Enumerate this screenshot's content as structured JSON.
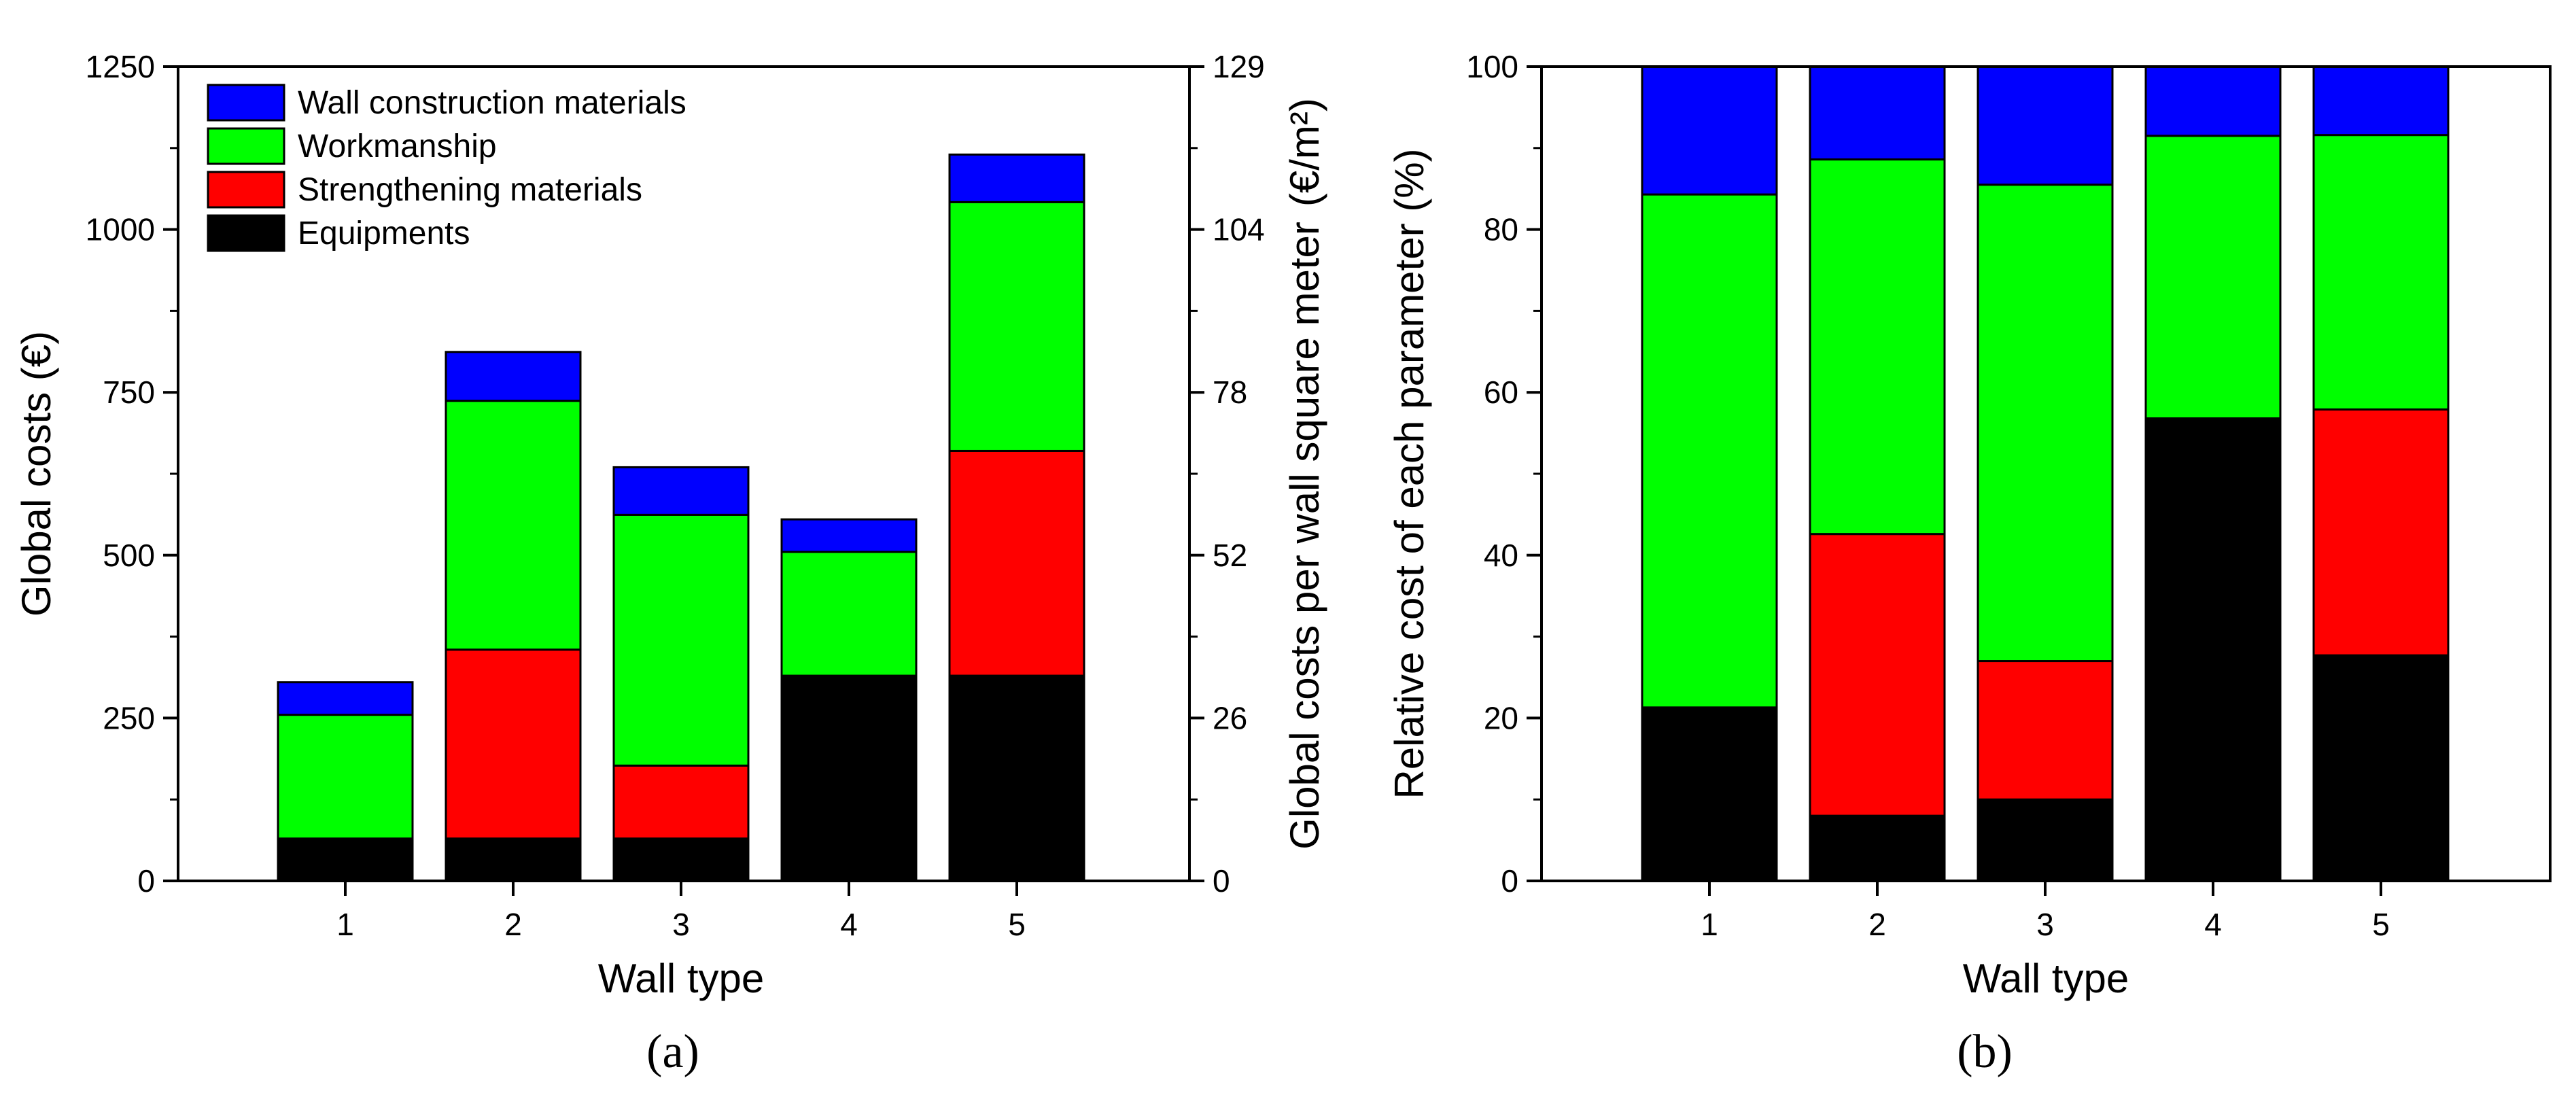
{
  "colors": {
    "wall_materials": "#0000ff",
    "workmanship": "#00ff00",
    "strengthening": "#ff0000",
    "equipments": "#000000",
    "axis": "#000000"
  },
  "chart_data": [
    {
      "panel": "a",
      "type": "bar",
      "stacked": true,
      "panel_label": "(a)",
      "xlabel": "Wall type",
      "ylabel": "Global costs (€)",
      "ylabel_right": "Global costs per wall square meter",
      "ylabel_right_unit": "(€/m²)",
      "categories": [
        "1",
        "2",
        "3",
        "4",
        "5"
      ],
      "ylim": [
        0,
        1250
      ],
      "yticks": [
        0,
        250,
        500,
        750,
        1000,
        1250
      ],
      "ytick_labels": [
        "0",
        "250",
        "500",
        "750",
        "1000",
        "1250"
      ],
      "yticks_right_labels": [
        "0",
        "26",
        "52",
        "78",
        "104",
        "129"
      ],
      "legend_position": "top-left",
      "series": [
        {
          "name": "Equipments",
          "color_key": "equipments",
          "values": [
            65,
            65,
            65,
            315,
            315
          ]
        },
        {
          "name": "Strengthening materials",
          "color_key": "strengthening",
          "values": [
            0,
            290,
            112,
            0,
            345
          ]
        },
        {
          "name": "Workmanship",
          "color_key": "workmanship",
          "values": [
            190,
            382,
            385,
            190,
            382
          ]
        },
        {
          "name": "Wall construction materials",
          "color_key": "wall_materials",
          "values": [
            50,
            75,
            73,
            50,
            73
          ]
        }
      ],
      "legend_order": [
        "Wall construction materials",
        "Workmanship",
        "Strengthening materials",
        "Equipments"
      ]
    },
    {
      "panel": "b",
      "type": "bar",
      "stacked": true,
      "panel_label": "(b)",
      "xlabel": "Wall type",
      "ylabel": "Relative cost of each parameter (%)",
      "categories": [
        "1",
        "2",
        "3",
        "4",
        "5"
      ],
      "ylim": [
        0,
        100
      ],
      "yticks": [
        0,
        20,
        40,
        60,
        80,
        100
      ],
      "ytick_labels": [
        "0",
        "20",
        "40",
        "60",
        "80",
        "100"
      ],
      "series": [
        {
          "name": "Equipments",
          "color_key": "equipments",
          "values": [
            21.3,
            8.0,
            10.0,
            56.8,
            27.7
          ]
        },
        {
          "name": "Strengthening materials",
          "color_key": "strengthening",
          "values": [
            0,
            34.6,
            17.0,
            0,
            30.2
          ]
        },
        {
          "name": "Workmanship",
          "color_key": "workmanship",
          "values": [
            63.0,
            46.0,
            58.5,
            34.7,
            33.7
          ]
        },
        {
          "name": "Wall construction materials",
          "color_key": "wall_materials",
          "values": [
            15.7,
            11.4,
            14.5,
            8.5,
            8.4
          ]
        }
      ]
    }
  ]
}
